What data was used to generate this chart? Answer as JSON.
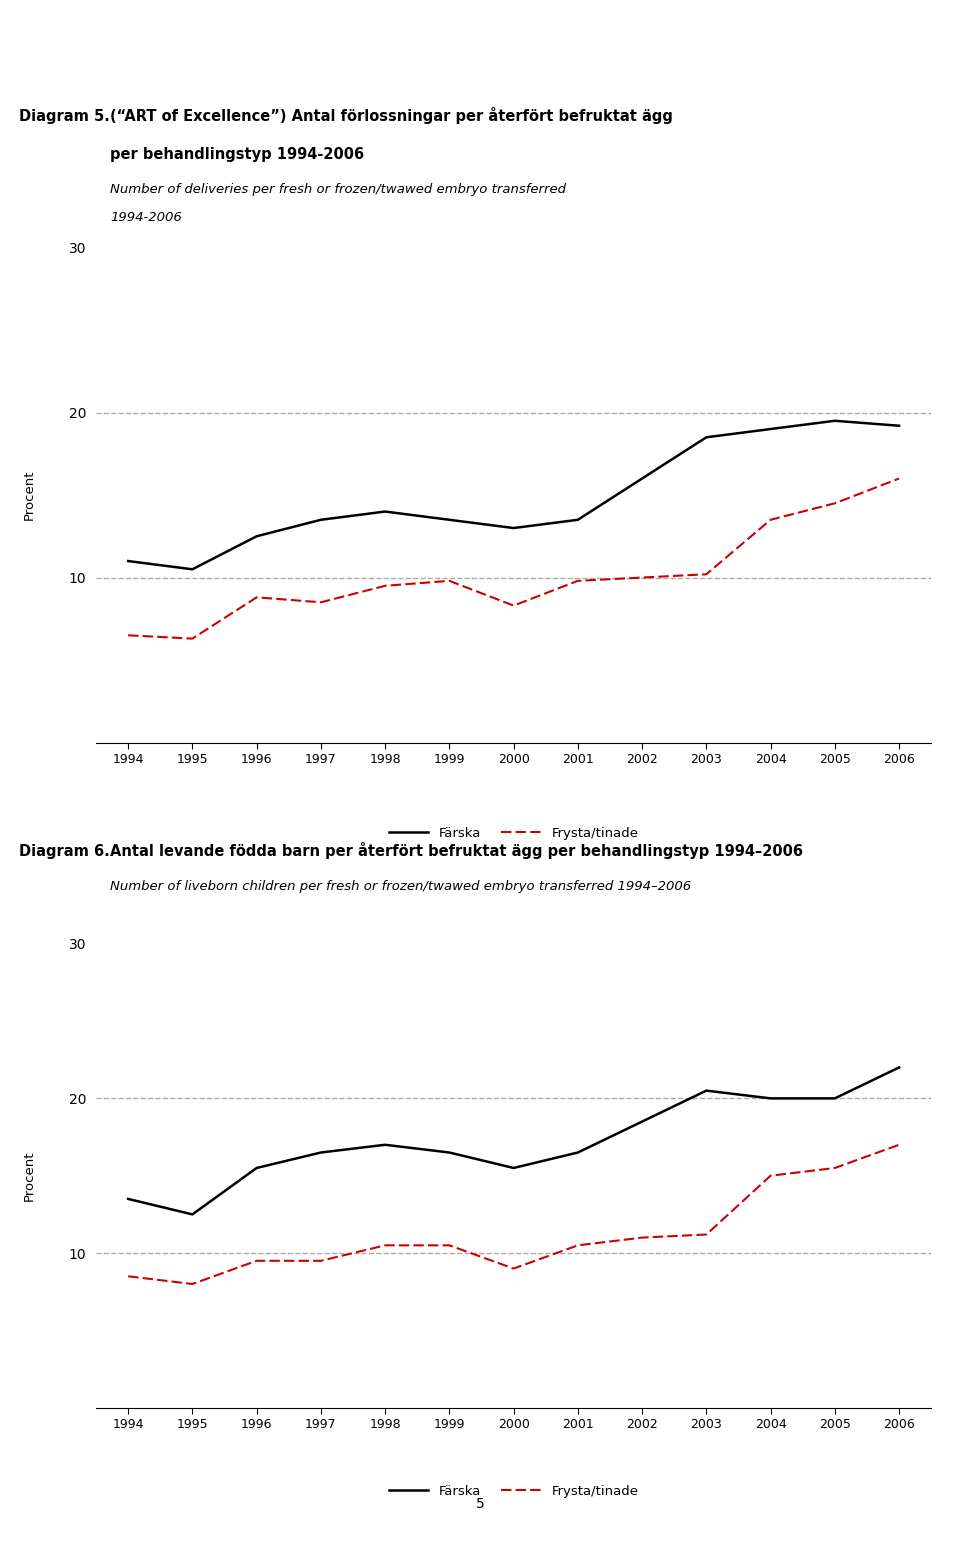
{
  "years": [
    1994,
    1995,
    1996,
    1997,
    1998,
    1999,
    2000,
    2001,
    2002,
    2003,
    2004,
    2005,
    2006
  ],
  "chart1": {
    "d_label": "Diagram 5.",
    "title_bold_main": "(“ART of Excellence”) Antal förlossningar per återfört befruktat ägg",
    "title_bold_line2": "per behandlingstyp 1994-2006",
    "title_italic": "Number of deliveries per fresh or frozen/twawed embryo transferred\n1994-2006",
    "ylabel": "Procent",
    "farska": [
      11.0,
      10.5,
      12.5,
      13.5,
      14.0,
      13.5,
      13.0,
      13.5,
      16.0,
      18.5,
      19.0,
      19.5,
      19.2
    ],
    "frysta": [
      6.5,
      6.3,
      8.8,
      8.5,
      9.5,
      9.8,
      8.3,
      9.8,
      10.0,
      10.2,
      13.5,
      14.5,
      16.0
    ]
  },
  "chart2": {
    "d_label": "Diagram 6.",
    "title_bold_main": "Antal levande födda barn per återfört befruktat ägg per behandlingstyp 1994–2006",
    "title_bold_line2": null,
    "title_italic": "Number of liveborn children per fresh or frozen/twawed embryo transferred 1994–2006",
    "ylabel": "Procent",
    "farska": [
      13.5,
      12.5,
      15.5,
      16.5,
      17.0,
      16.5,
      15.5,
      16.5,
      18.5,
      20.5,
      20.0,
      20.0,
      22.0
    ],
    "frysta": [
      8.5,
      8.0,
      9.5,
      9.5,
      10.5,
      10.5,
      9.0,
      10.5,
      11.0,
      11.2,
      15.0,
      15.5,
      17.0
    ]
  },
  "ylim": [
    0,
    30
  ],
  "yticks": [
    0,
    10,
    20,
    30
  ],
  "farska_color": "#000000",
  "frysta_color": "#cc0000",
  "grid_color": "#aaaaaa",
  "background_color": "#ffffff",
  "legend_farska": "Färska",
  "legend_frysta": "Frysta/tinade",
  "page_number": "5"
}
